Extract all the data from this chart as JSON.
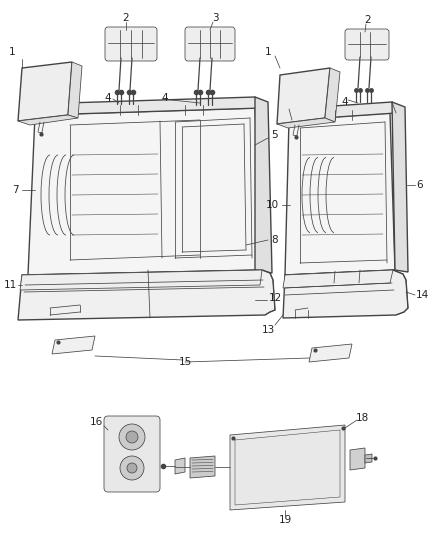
{
  "bg_color": "#ffffff",
  "line_color": "#444444",
  "label_color": "#222222",
  "figsize": [
    4.38,
    5.33
  ],
  "dpi": 100,
  "lw_main": 1.0,
  "lw_thin": 0.55,
  "lw_label": 0.5
}
